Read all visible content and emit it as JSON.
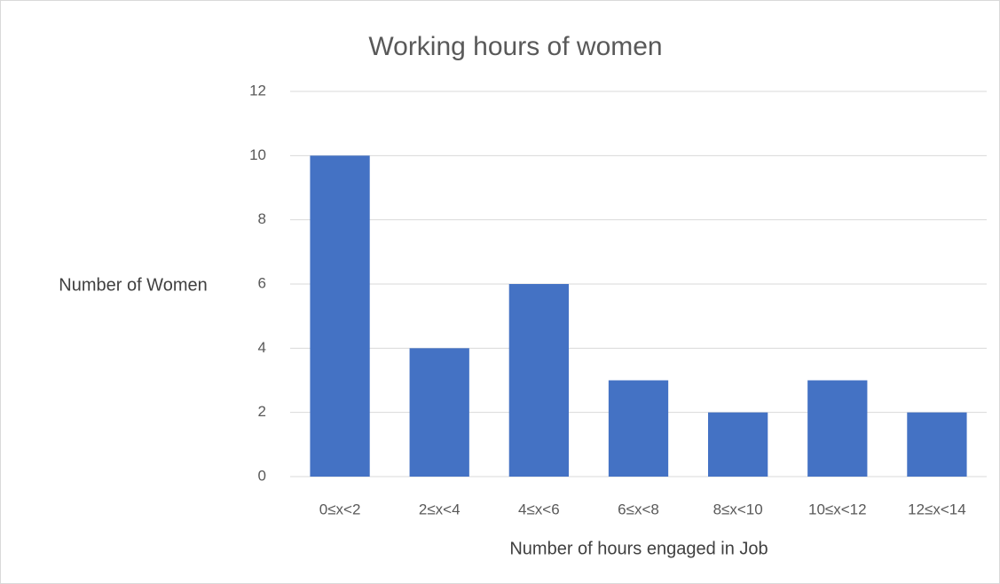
{
  "chart_data": {
    "type": "bar",
    "title": "Working hours of women",
    "x_label": "Number of hours engaged in Job",
    "y_label": "Number of Women",
    "categories": [
      "0≤x<2",
      "2≤x<4",
      "4≤x<6",
      "6≤x<8",
      "8≤x<10",
      "10≤x<12",
      "12≤x<14"
    ],
    "values": [
      10,
      4,
      6,
      3,
      2,
      3,
      2
    ],
    "color": "#4472c4",
    "ylim": [
      0,
      12
    ],
    "yticks": [
      0,
      2,
      4,
      6,
      8,
      10,
      12
    ],
    "grid": true
  }
}
